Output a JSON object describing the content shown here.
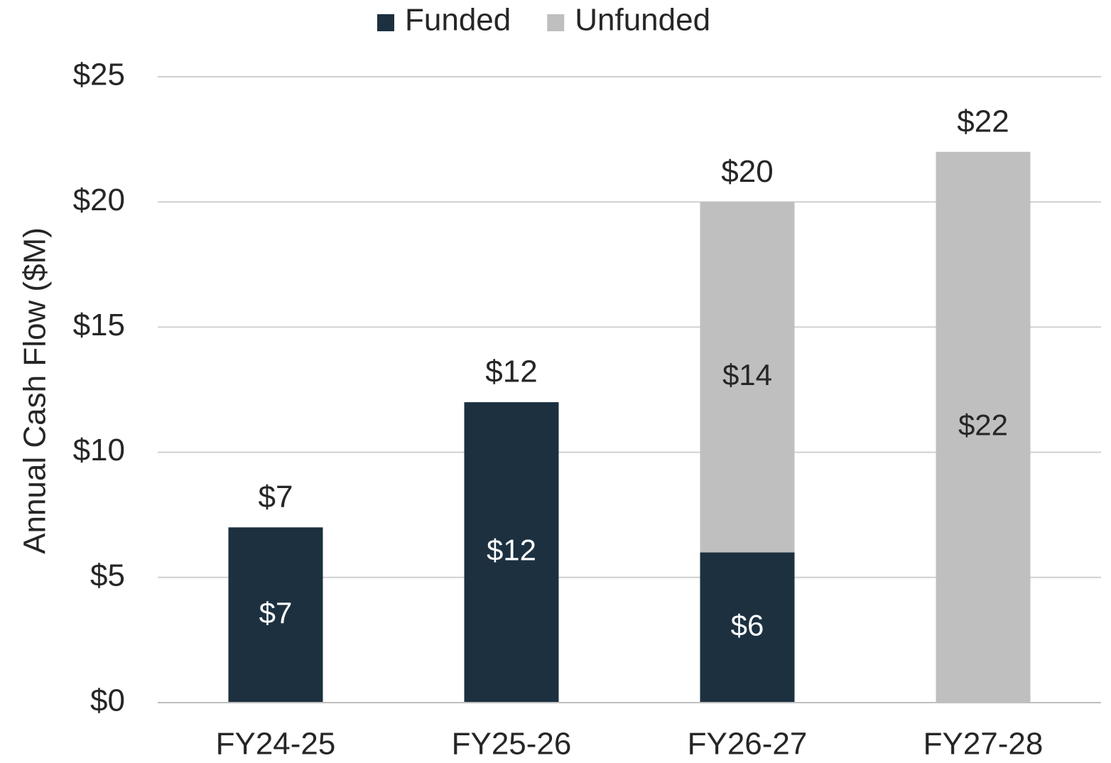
{
  "chart_data": {
    "type": "stacked_bar",
    "y_axis_label": "Annual Cash Flow ($M)",
    "categories": [
      "FY24-25",
      "FY25-26",
      "FY26-27",
      "FY27-28"
    ],
    "series": [
      {
        "name": "Funded",
        "color": "#1c3040",
        "label_color": "#ffffff",
        "values": [
          7,
          12,
          6,
          null
        ],
        "value_labels": [
          "$7",
          "$12",
          "$6",
          null
        ]
      },
      {
        "name": "Unfunded",
        "color": "#bfbfbf",
        "label_color": "#262626",
        "values": [
          null,
          null,
          14,
          22
        ],
        "value_labels": [
          null,
          null,
          "$14",
          "$22"
        ]
      }
    ],
    "total_labels": [
      "$7",
      "$12",
      "$20",
      "$22"
    ],
    "ylim": [
      0,
      25
    ],
    "yticks": [
      {
        "value": 0,
        "label": "$0"
      },
      {
        "value": 5,
        "label": "$5"
      },
      {
        "value": 10,
        "label": "$10"
      },
      {
        "value": 15,
        "label": "$15"
      },
      {
        "value": 20,
        "label": "$20"
      },
      {
        "value": 25,
        "label": "$25"
      }
    ],
    "grid": true,
    "legend": "top"
  }
}
